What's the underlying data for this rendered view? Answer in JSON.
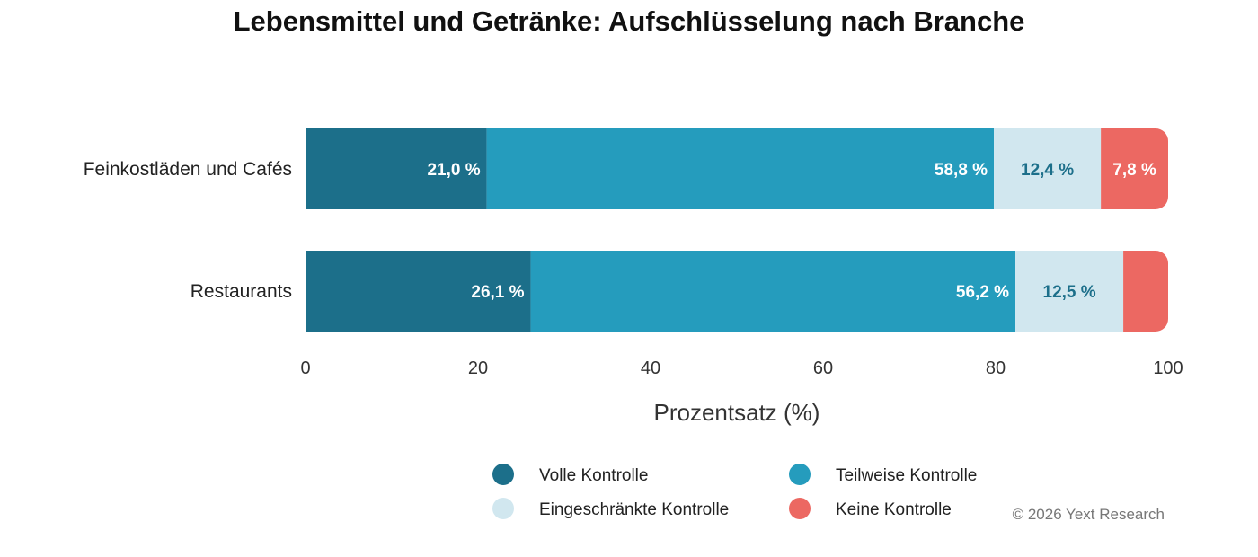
{
  "chart_data": {
    "type": "bar",
    "orientation": "horizontal",
    "stacked": true,
    "title": "Lebensmittel und Getränke: Aufschlüsselung nach Branche",
    "xlabel": "Prozentsatz (%)",
    "ylabel": "",
    "xlim": [
      0,
      100
    ],
    "xticks": [
      "0",
      "20",
      "40",
      "60",
      "80",
      "100"
    ],
    "categories": [
      "Feinkostläden und Cafés",
      "Restaurants"
    ],
    "series": [
      {
        "name": "Volle Kontrolle",
        "color": "#1c6f8a",
        "label_color": "#ffffff",
        "values": [
          21.0,
          26.1
        ],
        "labels": [
          "21,0 %",
          "26,1 %"
        ]
      },
      {
        "name": "Teilweise Kontrolle",
        "color": "#259cbd",
        "label_color": "#ffffff",
        "values": [
          58.8,
          56.2
        ],
        "labels": [
          "58,8 %",
          "56,2 %"
        ]
      },
      {
        "name": "Eingeschränkte Kontrolle",
        "color": "#d1e7ef",
        "label_color": "#1c6f8a",
        "values": [
          12.4,
          12.5
        ],
        "labels": [
          "12,4 %",
          "12,5 %"
        ]
      },
      {
        "name": "Keine Kontrolle",
        "color": "#ec6862",
        "label_color": "#ffffff",
        "values": [
          7.8,
          5.2
        ],
        "labels": [
          "7,8 %",
          ""
        ]
      }
    ],
    "legend": "bottom",
    "credit": "© 2026 Yext Research"
  }
}
